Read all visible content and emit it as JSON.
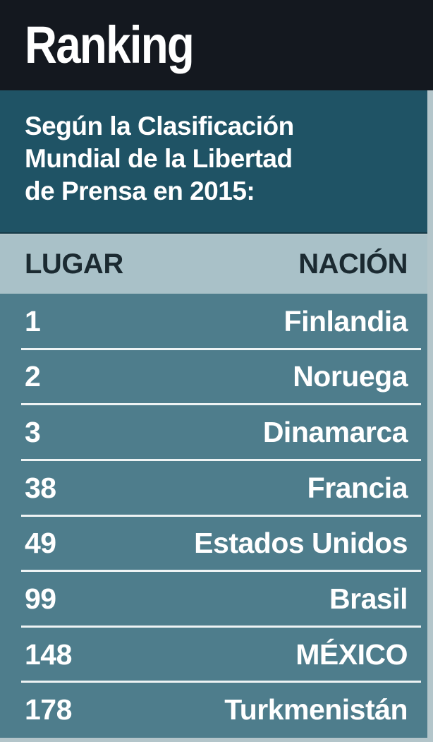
{
  "header": {
    "title": "Ranking"
  },
  "intro": {
    "subtitle": "Según la Clasificación\nMundial de la Libertad\nde Prensa en 2015:"
  },
  "table": {
    "columns": {
      "place": "LUGAR",
      "nation": "NACIÓN"
    },
    "rows": [
      {
        "place": "1",
        "nation": "Finlandia"
      },
      {
        "place": "2",
        "nation": "Noruega"
      },
      {
        "place": "3",
        "nation": "Dinamarca"
      },
      {
        "place": "38",
        "nation": "Francia"
      },
      {
        "place": "49",
        "nation": "Estados Unidos"
      },
      {
        "place": "99",
        "nation": "Brasil"
      },
      {
        "place": "148",
        "nation": "MÉXICO"
      },
      {
        "place": "178",
        "nation": "Turkmenistán"
      }
    ]
  },
  "colors": {
    "black": "#14181f",
    "teal_dark": "#1f5365",
    "teal_mid": "#4e7d8c",
    "row_light": "#a9c1c8",
    "edge_light": "#b3c5ca",
    "separator": "#eef3f4",
    "ink_dark": "#1b2a31",
    "text_white": "#ffffff"
  },
  "chart_data": {
    "type": "table",
    "title": "Ranking",
    "subtitle": "Según la Clasificación Mundial de la Libertad de Prensa en 2015:",
    "columns": [
      "LUGAR",
      "NACIÓN"
    ],
    "rows": [
      [
        1,
        "Finlandia"
      ],
      [
        2,
        "Noruega"
      ],
      [
        3,
        "Dinamarca"
      ],
      [
        38,
        "Francia"
      ],
      [
        49,
        "Estados Unidos"
      ],
      [
        99,
        "Brasil"
      ],
      [
        148,
        "MÉXICO"
      ],
      [
        178,
        "Turkmenistán"
      ]
    ]
  }
}
